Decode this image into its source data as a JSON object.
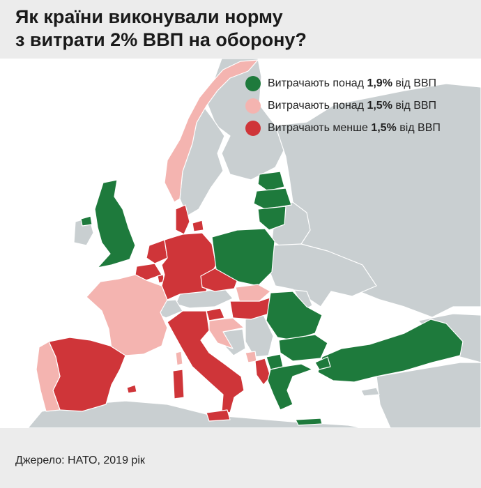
{
  "title": {
    "line1": "Як країни виконували норму",
    "line2": "з витрати 2% ВВП на оборону?"
  },
  "legend": [
    {
      "prefix": "Витрачають понад ",
      "value": "1,9%",
      "suffix": " від ВВП",
      "color": "#1e7a3c"
    },
    {
      "prefix": "Витрачають понад ",
      "value": "1,5%",
      "suffix": " від ВВП",
      "color": "#f4b4b0"
    },
    {
      "prefix": "Витрачають менше ",
      "value": "1,5%",
      "suffix": " від ВВП",
      "color": "#cf3539"
    }
  ],
  "source": "Джерело: НАТО, 2019 рік",
  "colors": {
    "green": "#1e7a3c",
    "pink": "#f4b4b0",
    "red": "#cf3539",
    "grey": "#c9cfd1",
    "sea": "#ffffff",
    "border": "#ffffff"
  },
  "countries": [
    {
      "id": "united-kingdom",
      "category": "green"
    },
    {
      "id": "estonia",
      "category": "green"
    },
    {
      "id": "latvia",
      "category": "green"
    },
    {
      "id": "lithuania",
      "category": "green"
    },
    {
      "id": "poland",
      "category": "green"
    },
    {
      "id": "romania",
      "category": "green"
    },
    {
      "id": "bulgaria",
      "category": "green"
    },
    {
      "id": "greece",
      "category": "green"
    },
    {
      "id": "turkey",
      "category": "green"
    },
    {
      "id": "norway",
      "category": "pink"
    },
    {
      "id": "france",
      "category": "pink"
    },
    {
      "id": "portugal",
      "category": "pink"
    },
    {
      "id": "croatia",
      "category": "pink"
    },
    {
      "id": "slovakia",
      "category": "pink"
    },
    {
      "id": "montenegro",
      "category": "pink"
    },
    {
      "id": "spain",
      "category": "red"
    },
    {
      "id": "italy",
      "category": "red"
    },
    {
      "id": "germany",
      "category": "red"
    },
    {
      "id": "netherlands",
      "category": "red"
    },
    {
      "id": "belgium",
      "category": "red"
    },
    {
      "id": "denmark",
      "category": "red"
    },
    {
      "id": "czechia",
      "category": "red"
    },
    {
      "id": "hungary",
      "category": "red"
    },
    {
      "id": "slovenia",
      "category": "red"
    },
    {
      "id": "albania",
      "category": "red"
    },
    {
      "id": "luxembourg",
      "category": "red"
    }
  ]
}
